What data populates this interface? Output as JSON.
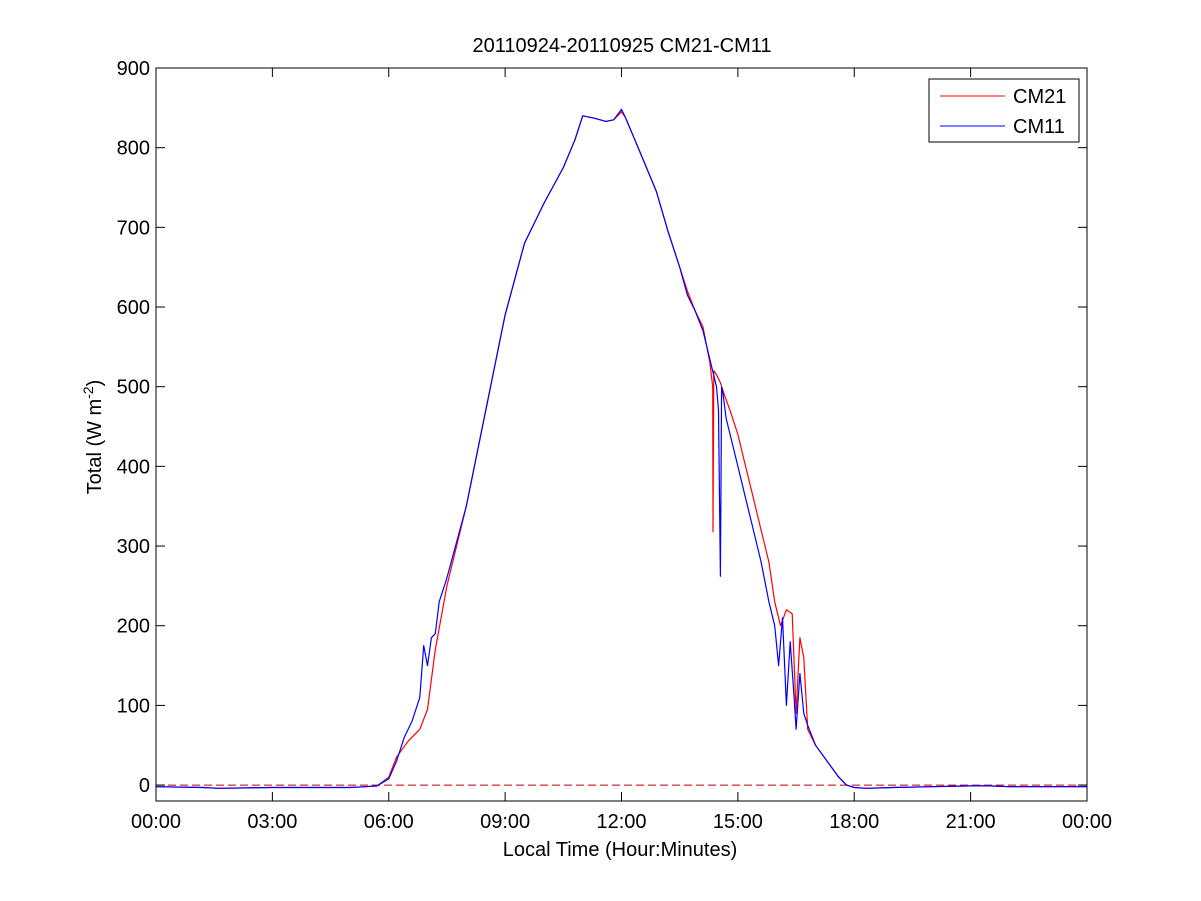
{
  "chart_data": {
    "type": "line",
    "title": "20110924-20110925 CM21-CM11",
    "xlabel": "Local Time (Hour:Minutes)",
    "ylabel": "Total (W m",
    "ylabel_superscript": "-2",
    "ylabel_suffix": ")",
    "x_unit": "hours",
    "xlim": [
      0,
      24
    ],
    "ylim": [
      -20,
      900
    ],
    "x_ticks": [
      0,
      3,
      6,
      9,
      12,
      15,
      18,
      21,
      24
    ],
    "x_tick_labels": [
      "00:00",
      "03:00",
      "06:00",
      "09:00",
      "12:00",
      "15:00",
      "18:00",
      "21:00",
      "00:00"
    ],
    "y_ticks": [
      0,
      100,
      200,
      300,
      400,
      500,
      600,
      700,
      800,
      900
    ],
    "y_tick_labels": [
      "0",
      "100",
      "200",
      "300",
      "400",
      "500",
      "600",
      "700",
      "800",
      "900"
    ],
    "grid": false,
    "legend_position": "top-right",
    "reference_line": {
      "y": 0,
      "style": "dashed",
      "color": "#c00000"
    },
    "series": [
      {
        "name": "CM21",
        "color": "#ff0000",
        "x": [
          0,
          1.2,
          1.6,
          3,
          5,
          5.4,
          5.7,
          6,
          6.2,
          6.5,
          6.8,
          7,
          7.2,
          7.5,
          8,
          8.5,
          9,
          9.5,
          10,
          10.5,
          10.8,
          11,
          11.3,
          11.6,
          11.8,
          12,
          12.1,
          12.3,
          12.6,
          12.9,
          13.2,
          13.5,
          13.7,
          13.9,
          14.1,
          14.28,
          14.35,
          14.36,
          14.38,
          14.45,
          14.55,
          14.65,
          14.8,
          15,
          15.2,
          15.4,
          15.6,
          15.8,
          15.95,
          16.1,
          16.25,
          16.4,
          16.5,
          16.6,
          16.7,
          16.8,
          17,
          17.3,
          17.6,
          17.8,
          18,
          18.3,
          19,
          20,
          21,
          21.5,
          22,
          24
        ],
        "values": [
          -2,
          -3,
          -4,
          -3,
          -3,
          -2,
          -1,
          10,
          35,
          55,
          70,
          95,
          170,
          250,
          350,
          470,
          590,
          680,
          730,
          775,
          810,
          840,
          837,
          833,
          835,
          845,
          838,
          815,
          780,
          745,
          695,
          650,
          620,
          595,
          575,
          530,
          500,
          318,
          520,
          515,
          505,
          490,
          470,
          440,
          400,
          360,
          320,
          280,
          230,
          200,
          220,
          215,
          90,
          185,
          160,
          70,
          50,
          30,
          10,
          0,
          -3,
          -4,
          -3,
          -2,
          -1,
          -1,
          -2,
          -2
        ]
      },
      {
        "name": "CM11",
        "color": "#0000ff",
        "x": [
          0,
          1.2,
          1.6,
          3,
          5,
          5.4,
          5.7,
          6,
          6.2,
          6.4,
          6.6,
          6.8,
          6.9,
          7,
          7.1,
          7.2,
          7.3,
          7.5,
          8,
          8.5,
          9,
          9.5,
          10,
          10.5,
          10.8,
          11,
          11.3,
          11.6,
          11.8,
          12,
          12.1,
          12.3,
          12.6,
          12.9,
          13.2,
          13.5,
          13.7,
          13.9,
          14.1,
          14.3,
          14.45,
          14.5,
          14.55,
          14.58,
          14.62,
          14.7,
          14.8,
          15,
          15.2,
          15.4,
          15.6,
          15.8,
          15.95,
          16.05,
          16.15,
          16.25,
          16.35,
          16.45,
          16.5,
          16.6,
          16.7,
          16.8,
          17,
          17.3,
          17.6,
          17.8,
          18,
          18.3,
          19,
          20,
          21,
          21.5,
          22,
          24
        ],
        "values": [
          -2,
          -3,
          -4,
          -3,
          -3,
          -2,
          -1,
          8,
          30,
          60,
          80,
          110,
          175,
          150,
          185,
          190,
          230,
          260,
          350,
          470,
          590,
          680,
          730,
          775,
          810,
          840,
          837,
          833,
          835,
          848,
          838,
          815,
          780,
          745,
          695,
          650,
          615,
          595,
          570,
          530,
          500,
          470,
          262,
          500,
          490,
          460,
          440,
          400,
          360,
          320,
          280,
          230,
          200,
          150,
          210,
          100,
          180,
          110,
          70,
          140,
          90,
          75,
          50,
          30,
          10,
          0,
          -3,
          -4,
          -3,
          -2,
          -1,
          -1,
          -2,
          -2
        ]
      }
    ]
  }
}
